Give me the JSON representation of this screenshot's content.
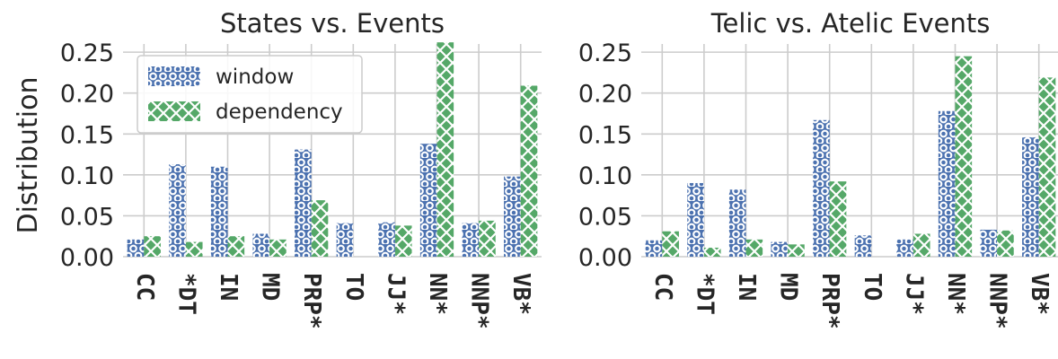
{
  "chart_data": [
    {
      "type": "bar",
      "title": "States vs. Events",
      "ylabel": "Distribution",
      "xlabel": "",
      "ylim": [
        0,
        0.26
      ],
      "yticks": [
        "0.00",
        "0.05",
        "0.10",
        "0.15",
        "0.20",
        "0.25"
      ],
      "grid": true,
      "legend": "top-left",
      "categories": [
        "CC",
        "*DT",
        "IN",
        "MD",
        "PRP*",
        "TO",
        "JJ*",
        "NN*",
        "NNP*",
        "VB*"
      ],
      "series": [
        {
          "name": "window",
          "color": "#4c72b0",
          "pattern": "circles",
          "values": [
            0.021,
            0.113,
            0.11,
            0.028,
            0.131,
            0.041,
            0.042,
            0.138,
            0.041,
            0.098
          ]
        },
        {
          "name": "dependency",
          "color": "#55a868",
          "pattern": "cross-hatch",
          "values": [
            0.025,
            0.018,
            0.025,
            0.021,
            0.069,
            0.0,
            0.038,
            0.262,
            0.044,
            0.209
          ]
        }
      ]
    },
    {
      "type": "bar",
      "title": "Telic vs. Atelic Events",
      "ylabel": "",
      "xlabel": "",
      "ylim": [
        0,
        0.26
      ],
      "yticks": [
        "0.00",
        "0.05",
        "0.10",
        "0.15",
        "0.20",
        "0.25"
      ],
      "grid": true,
      "categories": [
        "CC",
        "*DT",
        "IN",
        "MD",
        "PRP*",
        "TO",
        "JJ*",
        "NN*",
        "NNP*",
        "VB*"
      ],
      "series": [
        {
          "name": "window",
          "color": "#4c72b0",
          "pattern": "circles",
          "values": [
            0.02,
            0.09,
            0.082,
            0.018,
            0.167,
            0.026,
            0.021,
            0.178,
            0.033,
            0.146
          ]
        },
        {
          "name": "dependency",
          "color": "#55a868",
          "pattern": "cross-hatch",
          "values": [
            0.031,
            0.011,
            0.021,
            0.015,
            0.092,
            0.0,
            0.028,
            0.245,
            0.032,
            0.219
          ]
        }
      ]
    }
  ]
}
